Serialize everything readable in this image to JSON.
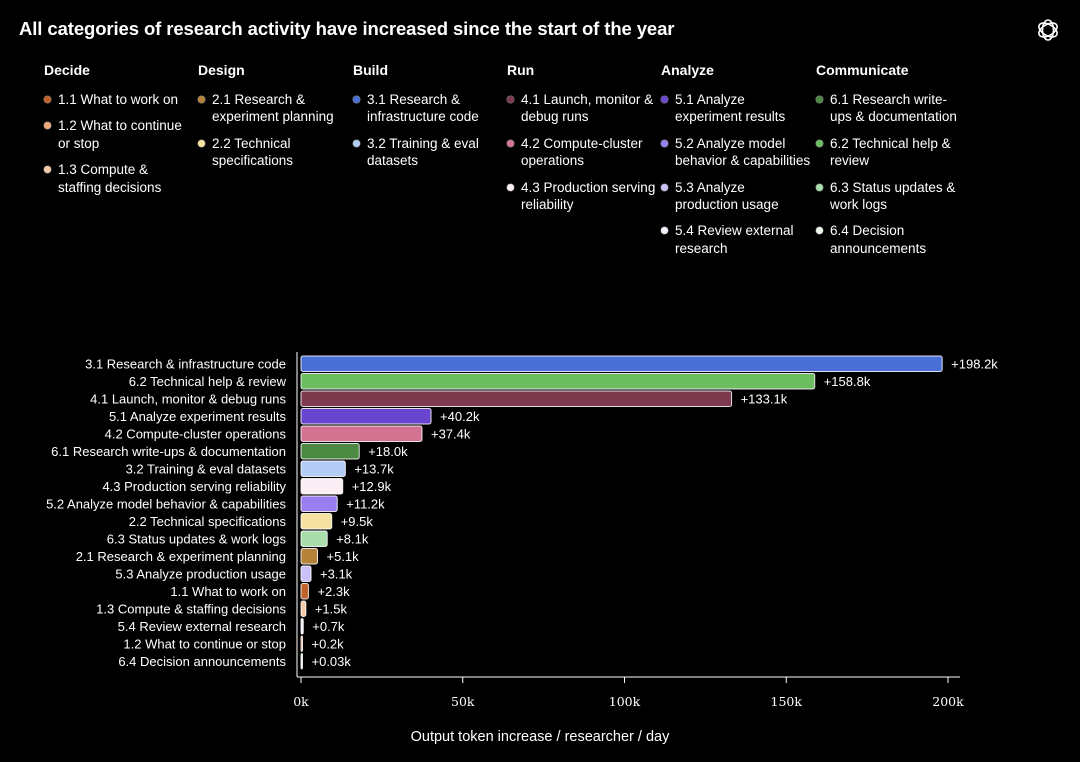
{
  "title": "All categories of research activity have increased since the start of the year",
  "categories": [
    {
      "name": "Decide",
      "items": [
        {
          "label": "1.1 What to work on",
          "color": "#c0622b"
        },
        {
          "label": "1.2 What to continue or stop",
          "color": "#f0a878"
        },
        {
          "label": "1.3 Compute & staffing decisions",
          "color": "#f5c9a5"
        }
      ]
    },
    {
      "name": "Design",
      "items": [
        {
          "label": "2.1 Research & experiment planning",
          "color": "#b5823a"
        },
        {
          "label": "2.2 Technical specifications",
          "color": "#f6e2a0"
        }
      ]
    },
    {
      "name": "Build",
      "items": [
        {
          "label": "3.1 Research & infrastructure code",
          "color": "#4a6fd6"
        },
        {
          "label": "3.2 Training & eval datasets",
          "color": "#b3cdf7"
        }
      ]
    },
    {
      "name": "Run",
      "items": [
        {
          "label": "4.1 Launch, monitor & debug runs",
          "color": "#7d3a4f"
        },
        {
          "label": "4.2 Compute-cluster operations",
          "color": "#d27392"
        },
        {
          "label": "4.3 Production serving reliability",
          "color": "#fbeef5"
        }
      ]
    },
    {
      "name": "Analyze",
      "items": [
        {
          "label": "5.1 Analyze experiment results",
          "color": "#6a45cf"
        },
        {
          "label": "5.2 Analyze model behavior & capabilities",
          "color": "#9a7ef0"
        },
        {
          "label": "5.3 Analyze production usage",
          "color": "#cbc0f7"
        },
        {
          "label": "5.4 Review external research",
          "color": "#f4f1fd"
        }
      ]
    },
    {
      "name": "Communicate",
      "items": [
        {
          "label": "6.1 Research write-ups & documentation",
          "color": "#4c8a44"
        },
        {
          "label": "6.2 Technical help & review",
          "color": "#6bbd5f"
        },
        {
          "label": "6.3 Status updates & work logs",
          "color": "#a9deac"
        },
        {
          "label": "6.4 Decision announcements",
          "color": "#ecf8ec"
        }
      ]
    }
  ],
  "chart_data": {
    "type": "bar",
    "orientation": "horizontal",
    "categories": [
      "3.1 Research & infrastructure code",
      "6.2 Technical help & review",
      "4.1 Launch, monitor & debug runs",
      "5.1 Analyze experiment results",
      "4.2 Compute-cluster operations",
      "6.1 Research write-ups & documentation",
      "3.2 Training & eval datasets",
      "4.3 Production serving reliability",
      "5.2 Analyze model behavior & capabilities",
      "2.2 Technical specifications",
      "6.3 Status updates & work logs",
      "2.1 Research & experiment planning",
      "5.3 Analyze production usage",
      "1.1 What to work on",
      "1.3 Compute & staffing decisions",
      "5.4 Review external research",
      "1.2 What to continue or stop",
      "6.4 Decision announcements"
    ],
    "values": [
      198200,
      158800,
      133100,
      40200,
      37400,
      18000,
      13700,
      12900,
      11200,
      9500,
      8100,
      5100,
      3100,
      2300,
      1500,
      700,
      200,
      30
    ],
    "data_labels": [
      "+198.2k",
      "+158.8k",
      "+133.1k",
      "+40.2k",
      "+37.4k",
      "+18.0k",
      "+13.7k",
      "+12.9k",
      "+11.2k",
      "+9.5k",
      "+8.1k",
      "+5.1k",
      "+3.1k",
      "+2.3k",
      "+1.5k",
      "+0.7k",
      "+0.2k",
      "+0.03k"
    ],
    "colors": [
      "#4a6fd6",
      "#6bbd5f",
      "#7d3a4f",
      "#6a45cf",
      "#d27392",
      "#4c8a44",
      "#b3cdf7",
      "#fbeef5",
      "#9a7ef0",
      "#f6e2a0",
      "#a9deac",
      "#b5823a",
      "#cbc0f7",
      "#c0622b",
      "#f5c9a5",
      "#f4f1fd",
      "#f0a878",
      "#ecf8ec"
    ],
    "xlim": [
      0,
      200000
    ],
    "xticks": [
      0,
      50000,
      100000,
      150000,
      200000
    ],
    "xtick_labels": [
      "0k",
      "50k",
      "100k",
      "150k",
      "200k"
    ],
    "xlabel": "Output token increase / researcher / day",
    "ylabel": "",
    "grid": false,
    "legend": "top"
  }
}
